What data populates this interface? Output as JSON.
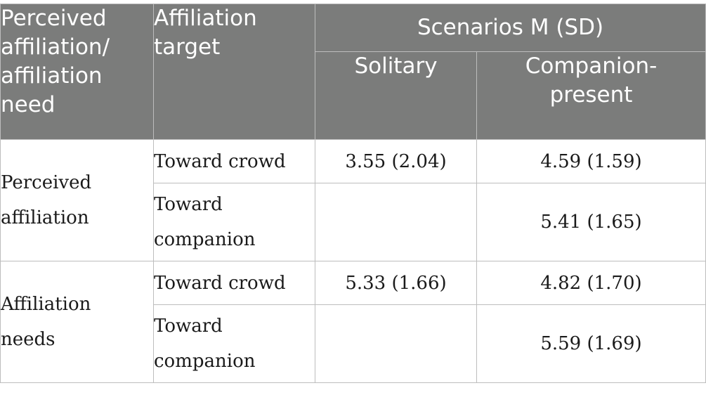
{
  "header": {
    "col1": "Perceived affiliation/ affiliation need",
    "col2": "Affiliation target",
    "scenarios": "Scenarios M (SD)",
    "solitary": "Solitary",
    "companion": "Companion-present"
  },
  "groups": [
    {
      "label": "Perceived affiliation",
      "rows": [
        {
          "target": "Toward crowd",
          "solitary": "3.55 (2.04)",
          "companion": "4.59 (1.59)"
        },
        {
          "target": "Toward companion",
          "solitary": "",
          "companion": "5.41 (1.65)"
        }
      ]
    },
    {
      "label": "Affiliation needs",
      "rows": [
        {
          "target": "Toward crowd",
          "solitary": "5.33 (1.66)",
          "companion": "4.82 (1.70)"
        },
        {
          "target": "Toward companion",
          "solitary": "",
          "companion": "5.59 (1.69)"
        }
      ]
    }
  ]
}
